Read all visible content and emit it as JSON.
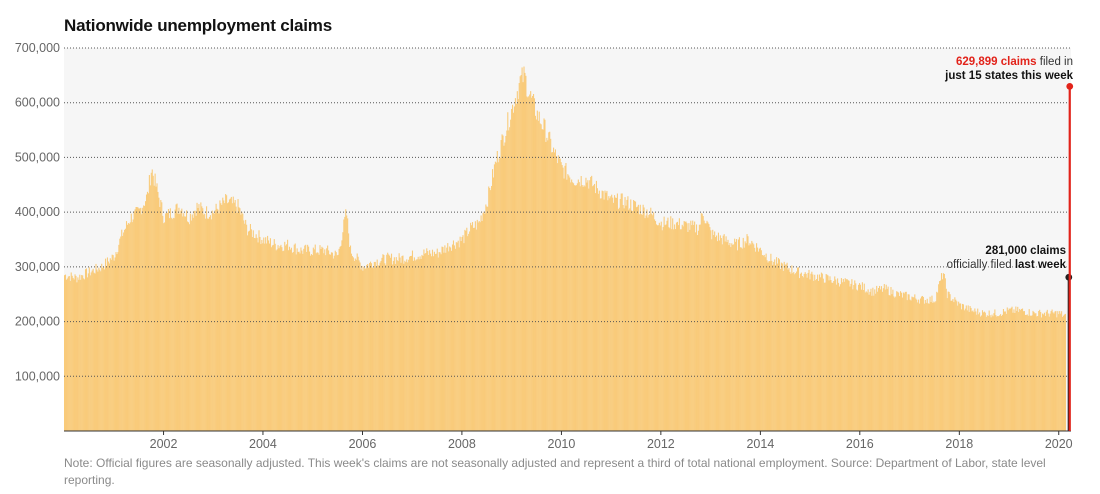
{
  "chart_data": {
    "type": "bar",
    "title": "Nationwide unemployment claims",
    "xlabel": "",
    "ylabel": "",
    "ylim": [
      0,
      700000
    ],
    "xlim": [
      "2000-01-01",
      "2020-03-31"
    ],
    "grid": true,
    "y_ticks": [
      100000,
      200000,
      300000,
      400000,
      500000,
      600000,
      700000
    ],
    "y_tick_labels": [
      "100,000",
      "200,000",
      "300,000",
      "400,000",
      "500,000",
      "600,000",
      "700,000"
    ],
    "x_ticks": [
      "2002-01-01",
      "2004-01-01",
      "2006-01-01",
      "2008-01-01",
      "2010-01-01",
      "2012-01-01",
      "2014-01-01",
      "2016-01-01",
      "2018-01-01",
      "2020-01-01"
    ],
    "x_tick_labels": [
      "2002",
      "2004",
      "2006",
      "2008",
      "2010",
      "2012",
      "2014",
      "2016",
      "2018",
      "2020"
    ],
    "series": [
      {
        "color": "#f9cb7b",
        "x": [
          "2000-01-01",
          "2000-04-01",
          "2000-07-01",
          "2000-10-01",
          "2001-01-01",
          "2001-03-01",
          "2001-05-01",
          "2001-07-01",
          "2001-09-01",
          "2001-10-01",
          "2001-11-01",
          "2002-01-01",
          "2002-03-01",
          "2002-05-01",
          "2002-07-01",
          "2002-09-01",
          "2002-11-01",
          "2003-01-01",
          "2003-04-01",
          "2003-07-01",
          "2003-09-01",
          "2003-11-01",
          "2004-01-01",
          "2004-04-01",
          "2004-07-01",
          "2004-10-01",
          "2005-01-01",
          "2005-04-01",
          "2005-07-01",
          "2005-09-01",
          "2005-10-01",
          "2005-12-01",
          "2006-01-01",
          "2006-04-01",
          "2006-07-01",
          "2006-10-01",
          "2007-01-01",
          "2007-04-01",
          "2007-07-01",
          "2007-10-01",
          "2008-01-01",
          "2008-03-01",
          "2008-05-01",
          "2008-07-01",
          "2008-09-01",
          "2008-11-01",
          "2009-01-01",
          "2009-03-01",
          "2009-04-01",
          "2009-05-01",
          "2009-07-01",
          "2009-09-01",
          "2009-11-01",
          "2010-01-01",
          "2010-04-01",
          "2010-07-01",
          "2010-10-01",
          "2011-01-01",
          "2011-04-01",
          "2011-07-01",
          "2011-10-01",
          "2012-01-01",
          "2012-04-01",
          "2012-07-01",
          "2012-10-01",
          "2012-11-01",
          "2013-01-01",
          "2013-04-01",
          "2013-07-01",
          "2013-10-01",
          "2014-01-01",
          "2014-04-01",
          "2014-07-01",
          "2014-10-01",
          "2015-01-01",
          "2015-04-01",
          "2015-07-01",
          "2015-10-01",
          "2016-01-01",
          "2016-04-01",
          "2016-07-01",
          "2016-10-01",
          "2017-01-01",
          "2017-04-01",
          "2017-07-01",
          "2017-09-01",
          "2017-10-01",
          "2018-01-01",
          "2018-04-01",
          "2018-07-01",
          "2018-10-01",
          "2019-01-01",
          "2019-04-01",
          "2019-07-01",
          "2019-10-01",
          "2020-01-01",
          "2020-02-15"
        ],
        "values": [
          285000,
          280000,
          290000,
          300000,
          320000,
          360000,
          390000,
          400000,
          430000,
          480000,
          450000,
          390000,
          400000,
          410000,
          390000,
          410000,
          400000,
          400000,
          420000,
          410000,
          370000,
          360000,
          350000,
          340000,
          340000,
          330000,
          330000,
          330000,
          320000,
          400000,
          330000,
          310000,
          300000,
          310000,
          315000,
          315000,
          320000,
          325000,
          325000,
          340000,
          350000,
          370000,
          380000,
          420000,
          490000,
          540000,
          590000,
          640000,
          650000,
          620000,
          580000,
          550000,
          510000,
          480000,
          460000,
          460000,
          440000,
          420000,
          420000,
          410000,
          400000,
          380000,
          380000,
          375000,
          370000,
          400000,
          360000,
          350000,
          340000,
          350000,
          330000,
          310000,
          300000,
          290000,
          285000,
          280000,
          275000,
          270000,
          265000,
          255000,
          260000,
          250000,
          245000,
          240000,
          240000,
          290000,
          250000,
          230000,
          220000,
          215000,
          215000,
          220000,
          220000,
          215000,
          215000,
          215000,
          210000
        ]
      }
    ],
    "highlights": [
      {
        "date": "2020-03-14",
        "value": 281000,
        "color": "#222222",
        "label_bold": "281,000 claims",
        "label_normal": "officially filed",
        "label_bold_2": "last week"
      },
      {
        "date": "2020-03-21",
        "value": 629899,
        "color": "#e2231a",
        "label_bold": "629,899 claims",
        "label_normal": "filed in",
        "label_bold_2": "just 15 states this week"
      }
    ],
    "note": "Note: Official figures are seasonally adjusted. This week's claims are not seasonally adjusted and represent a third of total national employment. Source: Department of Labor, state level reporting."
  }
}
